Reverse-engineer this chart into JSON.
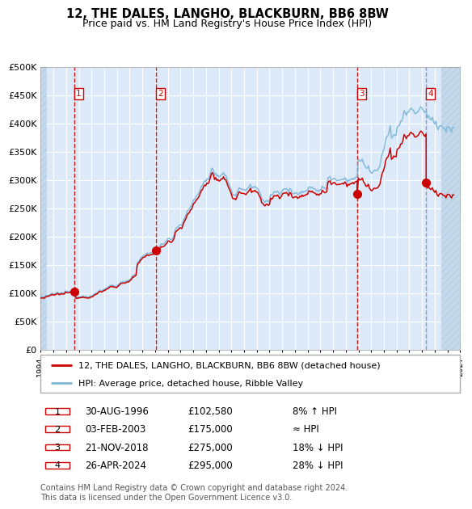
{
  "title": "12, THE DALES, LANGHO, BLACKBURN, BB6 8BW",
  "subtitle": "Price paid vs. HM Land Registry's House Price Index (HPI)",
  "ylim": [
    0,
    500000
  ],
  "yticks": [
    0,
    50000,
    100000,
    150000,
    200000,
    250000,
    300000,
    350000,
    400000,
    450000,
    500000
  ],
  "ytick_labels": [
    "£0",
    "£50K",
    "£100K",
    "£150K",
    "£200K",
    "£250K",
    "£300K",
    "£350K",
    "£400K",
    "£450K",
    "£500K"
  ],
  "xlim_start": 1994.0,
  "xlim_end": 2027.0,
  "plot_bg_color": "#dce9f8",
  "grid_color": "#ffffff",
  "line_color_hpi": "#7ab5d8",
  "line_color_price": "#cc0000",
  "purchase_dates": [
    1996.664,
    2003.087,
    2018.896,
    2024.321
  ],
  "purchase_prices": [
    102580,
    175000,
    275000,
    295000
  ],
  "purchase_labels": [
    "1",
    "2",
    "3",
    "4"
  ],
  "legend_price_label": "12, THE DALES, LANGHO, BLACKBURN, BB6 8BW (detached house)",
  "legend_hpi_label": "HPI: Average price, detached house, Ribble Valley",
  "table_rows": [
    {
      "num": "1",
      "date": "30-AUG-1996",
      "price": "£102,580",
      "vs_hpi": "8% ↑ HPI"
    },
    {
      "num": "2",
      "date": "03-FEB-2003",
      "price": "£175,000",
      "vs_hpi": "≈ HPI"
    },
    {
      "num": "3",
      "date": "21-NOV-2018",
      "price": "£275,000",
      "vs_hpi": "18% ↓ HPI"
    },
    {
      "num": "4",
      "date": "26-APR-2024",
      "price": "£295,000",
      "vs_hpi": "28% ↓ HPI"
    }
  ],
  "footer_text": "Contains HM Land Registry data © Crown copyright and database right 2024.\nThis data is licensed under the Open Government Licence v3.0."
}
